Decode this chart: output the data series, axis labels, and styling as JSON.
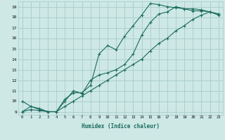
{
  "title": "",
  "xlabel": "Humidex (Indice chaleur)",
  "bg_color": "#cde8e5",
  "grid_color": "#a8ccc9",
  "line_color": "#1a6b5e",
  "xlim": [
    -0.5,
    23.5
  ],
  "ylim": [
    8.7,
    19.5
  ],
  "xticks": [
    0,
    1,
    2,
    3,
    4,
    5,
    6,
    7,
    8,
    9,
    10,
    11,
    12,
    13,
    14,
    15,
    16,
    17,
    18,
    19,
    20,
    21,
    22,
    23
  ],
  "yticks": [
    9,
    10,
    11,
    12,
    13,
    14,
    15,
    16,
    17,
    18,
    19
  ],
  "line1_x": [
    0,
    1,
    2,
    3,
    4,
    5,
    6,
    7,
    8,
    9,
    10,
    11,
    12,
    13,
    14,
    15,
    16,
    17,
    18,
    19,
    20,
    21,
    22,
    23
  ],
  "line1_y": [
    10.0,
    9.5,
    9.3,
    9.0,
    9.0,
    10.0,
    11.0,
    10.7,
    12.0,
    12.5,
    12.7,
    13.0,
    13.5,
    14.5,
    16.3,
    17.5,
    18.3,
    18.5,
    19.0,
    18.8,
    18.8,
    18.7,
    18.5,
    18.3
  ],
  "line2_x": [
    0,
    1,
    2,
    3,
    4,
    5,
    6,
    7,
    8,
    9,
    10,
    11,
    12,
    13,
    14,
    15,
    16,
    17,
    18,
    19,
    20,
    21,
    22,
    23
  ],
  "line2_y": [
    9.0,
    9.5,
    9.2,
    9.0,
    9.0,
    10.2,
    10.8,
    10.8,
    11.5,
    14.5,
    15.3,
    14.9,
    16.2,
    17.2,
    18.2,
    19.3,
    19.2,
    19.0,
    18.9,
    18.8,
    18.6,
    18.6,
    18.5,
    18.2
  ],
  "line3_x": [
    0,
    1,
    2,
    3,
    4,
    5,
    6,
    7,
    8,
    9,
    10,
    11,
    12,
    13,
    14,
    15,
    16,
    17,
    18,
    19,
    20,
    21,
    22,
    23
  ],
  "line3_y": [
    9.0,
    9.2,
    9.1,
    9.0,
    9.0,
    9.5,
    10.0,
    10.5,
    11.0,
    11.5,
    12.0,
    12.5,
    13.0,
    13.5,
    14.0,
    14.8,
    15.5,
    16.0,
    16.7,
    17.2,
    17.8,
    18.2,
    18.5,
    18.3
  ]
}
